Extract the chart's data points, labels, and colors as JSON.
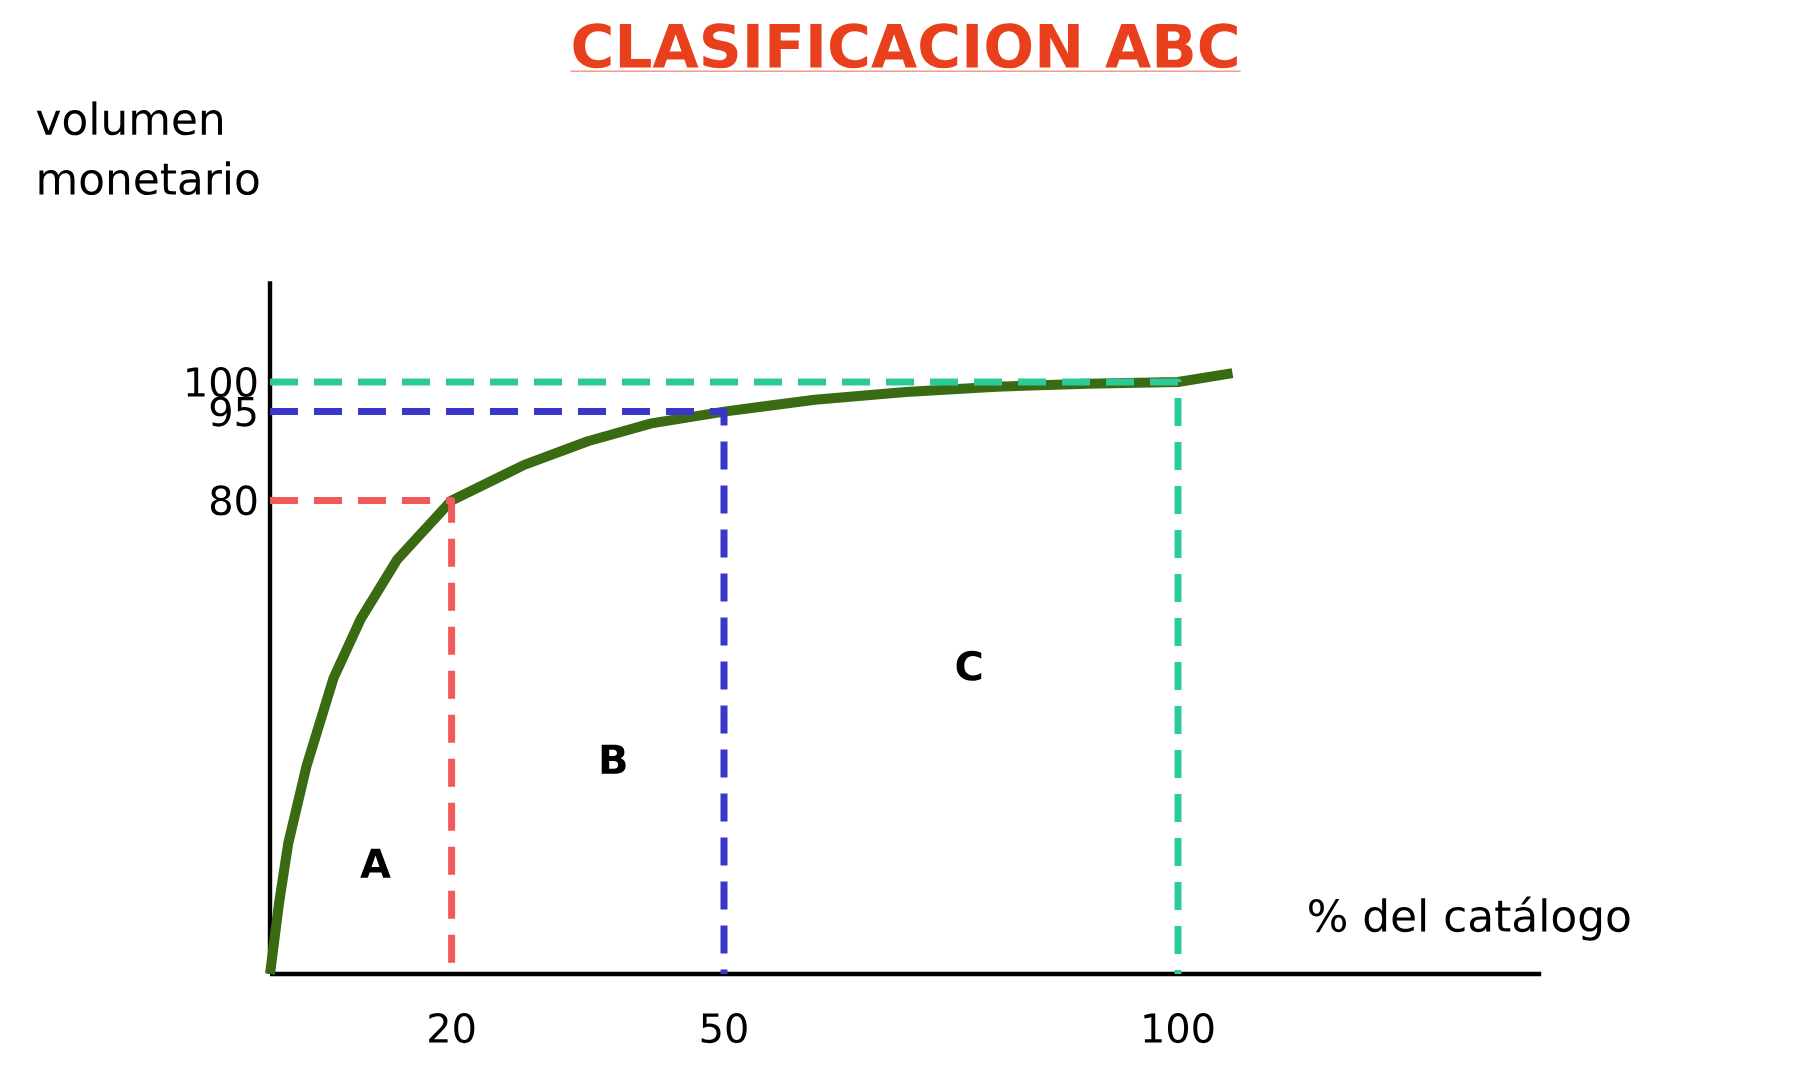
{
  "chart_data": {
    "type": "line",
    "title": "CLASIFICACION ABC",
    "xlabel": "% del catálogo",
    "ylabel": "volumen monetario",
    "xlim": [
      0,
      140
    ],
    "ylim": [
      0,
      117
    ],
    "xticks": [
      20,
      50,
      100
    ],
    "yticks": [
      80,
      95,
      100
    ],
    "marker": "none",
    "series": [
      {
        "color": "#3a6b12",
        "line_style": "solid",
        "x": [
          0,
          1,
          2,
          4,
          7,
          10,
          14,
          20,
          28,
          35,
          42,
          50,
          60,
          70,
          80,
          90,
          100,
          106
        ],
        "values": [
          0,
          12,
          22,
          35,
          50,
          60,
          70,
          80,
          86,
          90,
          93,
          95,
          97,
          98.3,
          99.2,
          99.7,
          100,
          101.5
        ]
      },
      {
        "color": "#f05a5a",
        "line_style": "dashed",
        "x": [
          0,
          20,
          20
        ],
        "values": [
          80,
          80,
          0
        ]
      },
      {
        "color": "#3a36c8",
        "line_style": "dashed",
        "x": [
          0,
          50,
          50
        ],
        "values": [
          95,
          95,
          0
        ]
      },
      {
        "color": "#2cc99a",
        "line_style": "dashed",
        "x": [
          0,
          100,
          100
        ],
        "values": [
          100,
          100,
          0
        ]
      }
    ],
    "annotations": [
      "A",
      "B",
      "C"
    ]
  }
}
